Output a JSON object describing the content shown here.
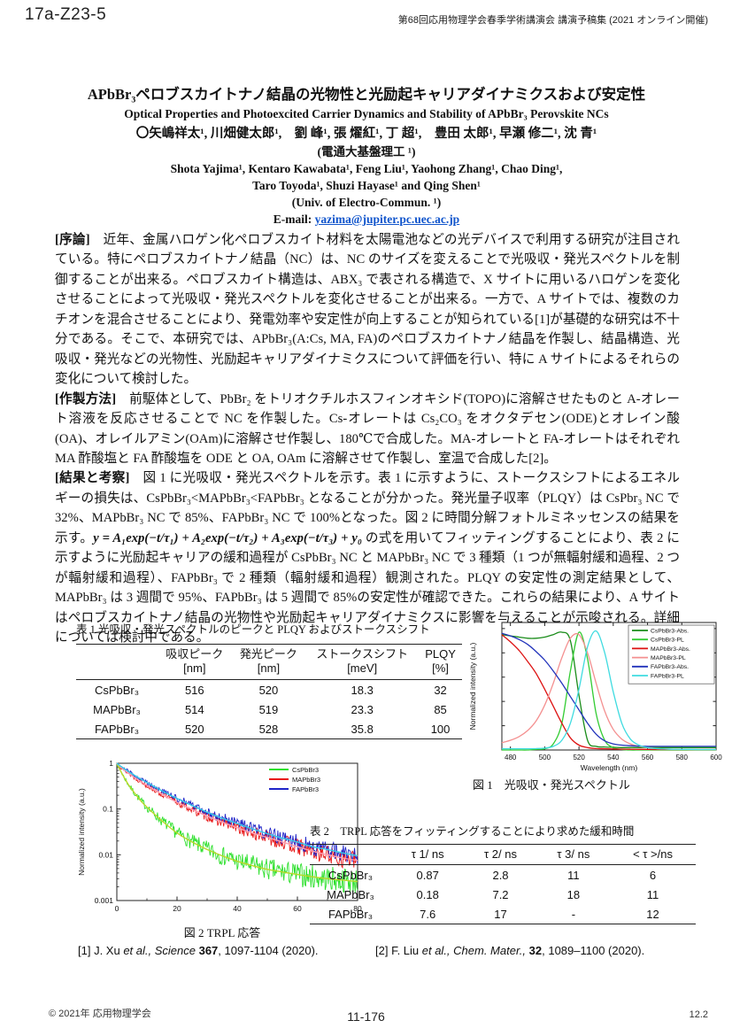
{
  "header": {
    "paper_id": "17a-Z23-5",
    "proceedings": "第68回応用物理学会春季学術講演会 講演予稿集 (2021 オンライン開催)"
  },
  "titles": {
    "title_ja": "APbBr₃ペロブスカイトナノ結晶の光物性と光励起キャリアダイナミクスおよび安定性",
    "title_en": "Optical Properties and Photoexcited Carrier Dynamics and Stability of APbBr₃ Perovskite NCs",
    "authors_ja": "〇矢嶋祥太¹, 川畑健太郎¹,　劉 峰¹, 張 燿紅¹, 丁 超¹,　豊田 太郎¹, 早瀬 修二¹, 沈 青¹",
    "affiliation_ja": "(電通大基盤理工 ¹)",
    "authors_en_line1": "Shota Yajima¹, Kentaro Kawabata¹, Feng Liu¹, Yaohong Zhang¹, Chao Ding¹,",
    "authors_en_line2": "Taro Toyoda¹, Shuzi Hayase¹ and Qing Shen¹",
    "affiliation_en": "(Univ. of Electro-Commun. ¹)",
    "email_label": "E-mail: ",
    "email": "yazima@jupiter.pc.uec.ac.jp"
  },
  "body": {
    "p1_head": "[序論]",
    "p1_text": "　近年、金属ハロゲン化ペロブスカイト材料を太陽電池などの光デバイスで利用する研究が注目されている。特にペロブスカイトナノ結晶（NC）は、NC のサイズを変えることで光吸収・発光スペクトルを制御することが出来る。ペロブスカイト構造は、ABX₃ で表される構造で、X サイトに用いるハロゲンを変化させることによって光吸収・発光スペクトルを変化させることが出来る。一方で、A サイトでは、複数のカチオンを混合させることにより、発電効率や安定性が向上することが知られている[1]が基礎的な研究は不十分である。そこで、本研究では、APbBr₃(A:Cs, MA, FA)のペロブスカイトナノ結晶を作製し、結晶構造、光吸収・発光などの光物性、光励起キャリアダイナミクスについて評価を行い、特に A サイトによるそれらの変化について検討した。",
    "p2_head": "[作製方法]",
    "p2_text": "　前駆体として、PbBr₂ をトリオクチルホスフィンオキシド(TOPO)に溶解させたものと A-オレート溶液を反応させることで NC を作製した。Cs-オレートは Cs₂CO₃ をオクタデセン(ODE)とオレイン酸(OA)、オレイルアミン(OAm)に溶解させ作製し、180℃で合成した。MA-オレートと FA-オレートはそれぞれ MA 酢酸塩と FA 酢酸塩を ODE と OA, OAm に溶解させて作製し、室温で合成した[2]。",
    "p3_head": " [結果と考察]",
    "p3_text_a": "　図 1 に光吸収・発光スペクトルを示す。表 1 に示すように、ストークスシフトによるエネルギーの損失は、CsPbBr₃<MAPbBr₃<FAPbBr₃ となることが分かった。発光量子収率（PLQY）は CsPbr₃ NC で 32%、MAPbBr₃ NC で 85%、FAPbBr₃ NC で 100%となった。図 2 に時間分解フォトルミネッセンスの結果を示す。",
    "equation": "y = A₁exp(−t/τ₁) + A₂exp(−t/τ₂) + A₃exp(−t/τ₃) + y₀",
    "p3_text_b": " の式を用いてフィッティングすることにより、表 2 に示すように光励起キャリアの緩和過程が CsPbBr₃ NC と MAPbBr₃ NC で 3 種類（1 つが無輻射緩和過程、2 つが輻射緩和過程）、FAPbBr₃ で 2 種類（輻射緩和過程）観測された。PLQY の安定性の測定結果として、MAPbBr₃ は 3 週間で 95%、FAPbBr₃ は 5 週間で 85%の安定性が確認できた。これらの結果により、A サイトはペロブスカイトナノ結晶の光物性や光励起キャリアダイナミクスに影響を与えることが示唆される。詳細については検討中である。"
  },
  "table1": {
    "caption": "表 1  光吸収・発光スペクトルのピークと PLQY およびストークスシフト",
    "headers": [
      {
        "label": "吸収ピーク",
        "unit": "[nm]"
      },
      {
        "label": "発光ピーク",
        "unit": "[nm]"
      },
      {
        "label": "ストークスシフト",
        "unit": "[meV]"
      },
      {
        "label": "PLQY",
        "unit": "[%]"
      }
    ],
    "rows": [
      {
        "label": "CsPbBr₃",
        "values": [
          "516",
          "520",
          "18.3",
          "32"
        ]
      },
      {
        "label": "MAPbBr₃",
        "values": [
          "514",
          "519",
          "23.3",
          "85"
        ]
      },
      {
        "label": "FAPbBr₃",
        "values": [
          "520",
          "528",
          "35.8",
          "100"
        ]
      }
    ]
  },
  "table2": {
    "caption": "表 2　TRPL 応答をフィッティングすることにより求めた緩和時間",
    "headers": [
      "τ 1/ ns",
      "τ 2/ ns",
      "τ 3/ ns",
      "< τ >/ns"
    ],
    "rows": [
      {
        "label": "CsPbBr₃",
        "values": [
          "0.87",
          "2.8",
          "11",
          "6"
        ]
      },
      {
        "label": "MAPbBr₃",
        "values": [
          "0.18",
          "7.2",
          "18",
          "11"
        ]
      },
      {
        "label": "FAPbBr₃",
        "values": [
          "7.6",
          "17",
          "-",
          "12"
        ]
      }
    ]
  },
  "references": {
    "ref1": {
      "pre": "[1] J. Xu ",
      "etal": "et al.,",
      "journal": " Science ",
      "vol": "367",
      "rest": ", 1097-1104 (2020)."
    },
    "ref2": {
      "pre": "[2] F. Liu ",
      "etal": "et al.,",
      "journal": " Chem. Mater.,",
      "vol": " 32",
      "rest": ", 1089–1100 (2020)."
    }
  },
  "footer": {
    "copyright": "© 2021年 応用物理学会",
    "page_number": "11-176",
    "code": "12.2"
  },
  "chart_data": [
    {
      "id": "figure1",
      "type": "line",
      "caption": "図 1　光吸収・発光スペクトル",
      "xlabel": "Wavelength (nm)",
      "ylabel": "Normalized intensity (a.u.)",
      "xlim": [
        475,
        600
      ],
      "ylim": [
        0,
        1.05
      ],
      "xticks": [
        480,
        500,
        520,
        540,
        560,
        580,
        600
      ],
      "grid": false,
      "legend_position": "top-right",
      "x": [
        475,
        480,
        485,
        490,
        495,
        500,
        505,
        510,
        515,
        520,
        525,
        530,
        535,
        540,
        545,
        550,
        555,
        560,
        565,
        570,
        575,
        580,
        585,
        590,
        595,
        600
      ],
      "series": [
        {
          "name": "CsPbBr3-Abs.",
          "color": "#1a8c1a",
          "values": [
            0.95,
            0.94,
            0.93,
            0.92,
            0.92,
            0.93,
            0.95,
            0.97,
            0.9,
            0.45,
            0.08,
            0.03,
            0.025,
            0.022,
            0.02,
            0.02,
            0.02,
            0.02,
            0.02,
            0.02,
            0.02,
            0.02,
            0.02,
            0.02,
            0.02,
            0.02
          ]
        },
        {
          "name": "CsPbBr3-PL",
          "color": "#33cc33",
          "values": [
            0,
            0,
            0,
            0,
            0.005,
            0.01,
            0.05,
            0.22,
            0.65,
            0.97,
            0.75,
            0.3,
            0.08,
            0.02,
            0.005,
            0,
            0,
            0,
            0,
            0,
            0,
            0,
            0,
            0,
            0,
            0
          ]
        },
        {
          "name": "MAPbBr3-Abs.",
          "color": "#dd1111",
          "values": [
            0.95,
            0.89,
            0.82,
            0.73,
            0.63,
            0.5,
            0.36,
            0.22,
            0.1,
            0.04,
            0.02,
            0.012,
            0.01,
            0.008,
            0.007,
            0.006,
            0.005,
            0.005,
            0.004,
            0.004,
            0.004,
            0.004,
            0.004,
            0.004,
            0.004,
            0.004
          ]
        },
        {
          "name": "MAPbBr3-PL",
          "color": "#f49090",
          "values": [
            0.06,
            0.08,
            0.11,
            0.16,
            0.24,
            0.37,
            0.55,
            0.76,
            0.92,
            0.95,
            0.8,
            0.55,
            0.32,
            0.17,
            0.09,
            0.05,
            0.03,
            0.02,
            0.012,
            0.008,
            0.006,
            0.005,
            0.004,
            0.004,
            0.004,
            0.004
          ]
        },
        {
          "name": "FAPbBr3-Abs.",
          "color": "#2233bb",
          "values": [
            0.96,
            0.94,
            0.91,
            0.87,
            0.81,
            0.74,
            0.65,
            0.55,
            0.44,
            0.33,
            0.22,
            0.13,
            0.075,
            0.05,
            0.04,
            0.035,
            0.032,
            0.03,
            0.03,
            0.03,
            0.03,
            0.03,
            0.03,
            0.03,
            0.03,
            0.03
          ]
        },
        {
          "name": "FAPbBr3-PL",
          "color": "#3fdbe0",
          "values": [
            0.01,
            0.01,
            0.01,
            0.01,
            0.012,
            0.015,
            0.03,
            0.08,
            0.22,
            0.5,
            0.85,
            0.98,
            0.8,
            0.48,
            0.22,
            0.09,
            0.04,
            0.02,
            0.012,
            0.008,
            0.006,
            0.005,
            0.005,
            0.004,
            0.004,
            0.004
          ]
        }
      ]
    },
    {
      "id": "figure2",
      "type": "line",
      "caption": "図 2 TRPL 応答",
      "xlabel": "",
      "ylabel": "Normalized intensity (a.u.)",
      "yscale": "log",
      "xlim": [
        0,
        80
      ],
      "ylim": [
        0.001,
        1
      ],
      "xticks": [
        0,
        20,
        40,
        60,
        80
      ],
      "yticks": [
        1,
        0.1,
        0.01,
        0.001
      ],
      "grid": false,
      "legend_position": "top-right",
      "x": [
        0,
        2,
        4,
        6,
        8,
        10,
        15,
        20,
        25,
        30,
        35,
        40,
        45,
        50,
        55,
        60,
        65,
        70,
        75,
        80
      ],
      "series": [
        {
          "name": "CsPbBr3",
          "color": "#2ee02e",
          "fit_color": "#b8d829",
          "noisy": true,
          "values": [
            1,
            0.55,
            0.33,
            0.22,
            0.15,
            0.11,
            0.055,
            0.03,
            0.019,
            0.013,
            0.0095,
            0.0072,
            0.0058,
            0.0048,
            0.0042,
            0.0037,
            0.0033,
            0.003,
            0.0028,
            0.0026
          ]
        },
        {
          "name": "MAPbBr3",
          "color": "#e81717",
          "fit_color": "#ff9db0",
          "noisy": true,
          "values": [
            1,
            0.75,
            0.6,
            0.48,
            0.4,
            0.33,
            0.21,
            0.14,
            0.098,
            0.07,
            0.052,
            0.039,
            0.03,
            0.024,
            0.019,
            0.015,
            0.012,
            0.01,
            0.0085,
            0.0075
          ]
        },
        {
          "name": "FAPbBr3",
          "color": "#1f24c8",
          "fit_color": "#35c8e8",
          "noisy": true,
          "values": [
            1,
            0.8,
            0.65,
            0.54,
            0.45,
            0.38,
            0.25,
            0.17,
            0.12,
            0.085,
            0.063,
            0.048,
            0.037,
            0.029,
            0.023,
            0.019,
            0.015,
            0.013,
            0.011,
            0.0095
          ]
        }
      ]
    }
  ]
}
